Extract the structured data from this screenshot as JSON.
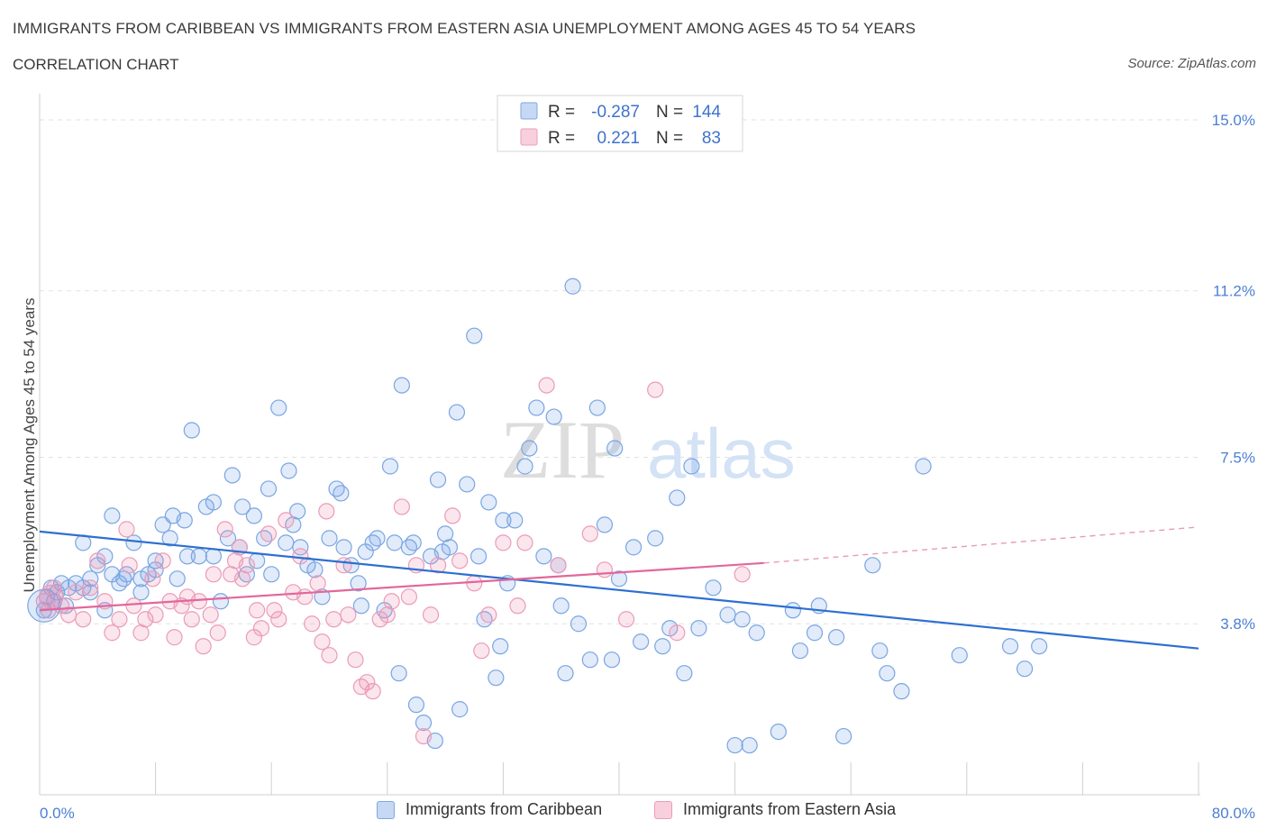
{
  "header": {
    "title": "IMMIGRANTS FROM CARIBBEAN VS IMMIGRANTS FROM EASTERN ASIA UNEMPLOYMENT AMONG AGES 45 TO 54 YEARS",
    "subtitle": "CORRELATION CHART",
    "source": "Source: ZipAtlas.com"
  },
  "watermark": {
    "zip": "ZIP",
    "atlas": "atlas"
  },
  "stats_legend": {
    "r_label": "R =",
    "n_label": "N =",
    "rows": [
      {
        "r": "-0.287",
        "n": "144",
        "color": "#5b8fd9"
      },
      {
        "r": "0.221",
        "n": "83",
        "color": "#e87ea3"
      }
    ]
  },
  "chart_data": {
    "type": "scatter",
    "ylabel": "Unemployment Among Ages 45 to 54 years",
    "xlabel": "",
    "x_tick_labels": [
      "0.0%",
      "80.0%"
    ],
    "y_tick_labels": [
      "15.0%",
      "11.2%",
      "7.5%",
      "3.8%"
    ],
    "y_ticks": [
      15.0,
      11.2,
      7.5,
      3.8
    ],
    "xlim": [
      0,
      80
    ],
    "ylim": [
      0,
      15.3
    ],
    "grid": true,
    "legend_position": "bottom",
    "series": [
      {
        "name": "Immigrants from Caribbean",
        "color": "#5b8fd9",
        "trend": {
          "x": [
            0,
            80
          ],
          "y": [
            5.85,
            3.25
          ]
        },
        "points": [
          [
            0.3,
            4.1
          ],
          [
            0.5,
            4.4
          ],
          [
            0.8,
            4.6
          ],
          [
            1.0,
            4.3
          ],
          [
            1.2,
            4.5
          ],
          [
            1.5,
            4.7
          ],
          [
            1.8,
            4.2
          ],
          [
            2.0,
            4.6
          ],
          [
            2.5,
            4.7
          ],
          [
            3.0,
            4.6
          ],
          [
            3.5,
            4.5
          ],
          [
            3.0,
            5.6
          ],
          [
            3.5,
            4.8
          ],
          [
            4.0,
            5.1
          ],
          [
            4.5,
            5.3
          ],
          [
            4.5,
            4.1
          ],
          [
            5.0,
            6.2
          ],
          [
            5.0,
            4.9
          ],
          [
            5.5,
            4.7
          ],
          [
            5.8,
            4.8
          ],
          [
            6.0,
            4.9
          ],
          [
            6.5,
            5.6
          ],
          [
            7.0,
            4.8
          ],
          [
            7.0,
            4.5
          ],
          [
            7.5,
            4.9
          ],
          [
            8.0,
            5.2
          ],
          [
            8.0,
            5.0
          ],
          [
            8.5,
            6.0
          ],
          [
            9.0,
            5.7
          ],
          [
            9.2,
            6.2
          ],
          [
            9.5,
            4.8
          ],
          [
            10.0,
            6.1
          ],
          [
            10.2,
            5.3
          ],
          [
            10.5,
            8.1
          ],
          [
            11.0,
            5.3
          ],
          [
            11.5,
            6.4
          ],
          [
            12.0,
            6.5
          ],
          [
            12.0,
            5.3
          ],
          [
            12.5,
            4.3
          ],
          [
            13.0,
            5.7
          ],
          [
            13.3,
            7.1
          ],
          [
            13.8,
            5.5
          ],
          [
            14.0,
            6.4
          ],
          [
            14.3,
            4.9
          ],
          [
            14.8,
            6.2
          ],
          [
            15.0,
            5.2
          ],
          [
            15.5,
            5.7
          ],
          [
            15.8,
            6.8
          ],
          [
            16.0,
            4.9
          ],
          [
            16.5,
            8.6
          ],
          [
            17.0,
            5.6
          ],
          [
            17.2,
            7.2
          ],
          [
            17.5,
            6.0
          ],
          [
            17.8,
            6.3
          ],
          [
            18.0,
            5.5
          ],
          [
            18.5,
            5.1
          ],
          [
            19.0,
            5.0
          ],
          [
            19.5,
            4.4
          ],
          [
            20.0,
            5.7
          ],
          [
            20.5,
            6.8
          ],
          [
            20.8,
            6.7
          ],
          [
            21.0,
            5.5
          ],
          [
            21.5,
            5.1
          ],
          [
            22.0,
            4.7
          ],
          [
            22.2,
            4.2
          ],
          [
            22.5,
            5.4
          ],
          [
            23.0,
            5.6
          ],
          [
            23.3,
            5.7
          ],
          [
            23.8,
            4.1
          ],
          [
            24.2,
            7.3
          ],
          [
            24.5,
            5.6
          ],
          [
            24.8,
            2.7
          ],
          [
            25.0,
            9.1
          ],
          [
            25.5,
            5.5
          ],
          [
            25.8,
            5.6
          ],
          [
            26.0,
            2.0
          ],
          [
            26.5,
            1.6
          ],
          [
            27.0,
            5.3
          ],
          [
            27.3,
            1.2
          ],
          [
            27.5,
            7.0
          ],
          [
            27.8,
            5.4
          ],
          [
            28.0,
            5.8
          ],
          [
            28.3,
            5.5
          ],
          [
            28.8,
            8.5
          ],
          [
            29.0,
            1.9
          ],
          [
            29.5,
            6.9
          ],
          [
            30.0,
            10.2
          ],
          [
            30.3,
            5.3
          ],
          [
            30.7,
            3.9
          ],
          [
            31.0,
            6.5
          ],
          [
            31.5,
            2.6
          ],
          [
            31.8,
            3.3
          ],
          [
            32.0,
            6.1
          ],
          [
            32.3,
            4.7
          ],
          [
            32.8,
            6.1
          ],
          [
            33.5,
            7.3
          ],
          [
            33.8,
            7.7
          ],
          [
            34.3,
            8.6
          ],
          [
            34.8,
            5.3
          ],
          [
            35.5,
            8.4
          ],
          [
            35.8,
            5.1
          ],
          [
            36.0,
            4.2
          ],
          [
            36.3,
            2.7
          ],
          [
            36.8,
            11.3
          ],
          [
            37.2,
            3.8
          ],
          [
            38.0,
            3.0
          ],
          [
            38.5,
            8.6
          ],
          [
            39.0,
            6.0
          ],
          [
            39.5,
            3.0
          ],
          [
            39.7,
            7.7
          ],
          [
            40.0,
            4.8
          ],
          [
            41.0,
            5.5
          ],
          [
            41.5,
            3.4
          ],
          [
            42.5,
            5.7
          ],
          [
            43.0,
            3.3
          ],
          [
            43.5,
            3.7
          ],
          [
            44.0,
            6.6
          ],
          [
            44.5,
            2.7
          ],
          [
            45.0,
            7.3
          ],
          [
            45.5,
            3.7
          ],
          [
            46.5,
            4.6
          ],
          [
            47.5,
            4.0
          ],
          [
            48.0,
            1.1
          ],
          [
            48.5,
            3.9
          ],
          [
            49.0,
            1.1
          ],
          [
            49.5,
            3.6
          ],
          [
            51.0,
            1.4
          ],
          [
            52.0,
            4.1
          ],
          [
            52.5,
            3.2
          ],
          [
            53.5,
            3.6
          ],
          [
            53.8,
            4.2
          ],
          [
            55.0,
            3.5
          ],
          [
            55.5,
            1.3
          ],
          [
            57.5,
            5.1
          ],
          [
            58.0,
            3.2
          ],
          [
            58.5,
            2.7
          ],
          [
            59.5,
            2.3
          ],
          [
            61.0,
            7.3
          ],
          [
            63.5,
            3.1
          ],
          [
            67.0,
            3.3
          ],
          [
            68.0,
            2.8
          ],
          [
            69.0,
            3.3
          ]
        ]
      },
      {
        "name": "Immigrants from Eastern Asia",
        "color": "#e87ea3",
        "trend": {
          "x": [
            0,
            50,
            80
          ],
          "y": [
            4.1,
            5.15,
            5.95
          ]
        },
        "points": [
          [
            0.3,
            4.3
          ],
          [
            0.6,
            4.1
          ],
          [
            1.0,
            4.6
          ],
          [
            1.5,
            4.2
          ],
          [
            2.0,
            4.0
          ],
          [
            2.5,
            4.5
          ],
          [
            3.0,
            3.9
          ],
          [
            3.5,
            4.6
          ],
          [
            4.0,
            5.2
          ],
          [
            4.5,
            4.3
          ],
          [
            5.0,
            3.6
          ],
          [
            5.5,
            3.9
          ],
          [
            6.0,
            5.9
          ],
          [
            6.2,
            5.1
          ],
          [
            6.5,
            4.2
          ],
          [
            7.0,
            3.6
          ],
          [
            7.3,
            3.9
          ],
          [
            7.8,
            4.8
          ],
          [
            8.0,
            4.0
          ],
          [
            8.5,
            5.2
          ],
          [
            9.0,
            4.3
          ],
          [
            9.3,
            3.5
          ],
          [
            9.8,
            4.2
          ],
          [
            10.2,
            4.4
          ],
          [
            10.5,
            3.9
          ],
          [
            11.0,
            4.3
          ],
          [
            11.3,
            3.3
          ],
          [
            11.8,
            4.0
          ],
          [
            12.0,
            4.9
          ],
          [
            12.3,
            3.6
          ],
          [
            12.8,
            5.9
          ],
          [
            13.2,
            4.9
          ],
          [
            13.5,
            5.2
          ],
          [
            13.8,
            5.5
          ],
          [
            14.0,
            4.8
          ],
          [
            14.3,
            5.1
          ],
          [
            14.8,
            3.5
          ],
          [
            15.0,
            4.1
          ],
          [
            15.3,
            3.7
          ],
          [
            15.8,
            5.8
          ],
          [
            16.2,
            4.1
          ],
          [
            16.5,
            3.9
          ],
          [
            17.0,
            6.1
          ],
          [
            17.5,
            4.5
          ],
          [
            18.0,
            5.3
          ],
          [
            18.3,
            4.4
          ],
          [
            18.8,
            3.8
          ],
          [
            19.2,
            4.7
          ],
          [
            19.5,
            3.4
          ],
          [
            19.8,
            6.3
          ],
          [
            20.0,
            3.1
          ],
          [
            20.3,
            3.9
          ],
          [
            21.0,
            5.1
          ],
          [
            21.3,
            4.0
          ],
          [
            21.8,
            3.0
          ],
          [
            22.2,
            2.4
          ],
          [
            22.6,
            2.5
          ],
          [
            23.0,
            2.3
          ],
          [
            23.5,
            3.9
          ],
          [
            24.0,
            4.0
          ],
          [
            24.3,
            4.3
          ],
          [
            25.0,
            6.4
          ],
          [
            25.5,
            4.4
          ],
          [
            26.0,
            5.1
          ],
          [
            26.5,
            1.3
          ],
          [
            27.0,
            4.0
          ],
          [
            27.5,
            5.1
          ],
          [
            28.5,
            6.2
          ],
          [
            29.0,
            5.2
          ],
          [
            30.0,
            4.7
          ],
          [
            30.5,
            3.2
          ],
          [
            31.0,
            4.0
          ],
          [
            32.0,
            5.6
          ],
          [
            33.0,
            4.2
          ],
          [
            33.5,
            5.6
          ],
          [
            35.0,
            9.1
          ],
          [
            35.8,
            5.1
          ],
          [
            38.0,
            5.8
          ],
          [
            39.0,
            5.0
          ],
          [
            40.5,
            3.9
          ],
          [
            42.5,
            9.0
          ],
          [
            44.0,
            3.6
          ],
          [
            48.5,
            4.9
          ]
        ]
      }
    ]
  },
  "bottom_legend": [
    {
      "label": "Immigrants from Caribbean",
      "fill": "#c6d8f4",
      "stroke": "#7da7e3"
    },
    {
      "label": "Immigrants from Eastern Asia",
      "fill": "#f8d0dd",
      "stroke": "#ec9cb7"
    }
  ]
}
